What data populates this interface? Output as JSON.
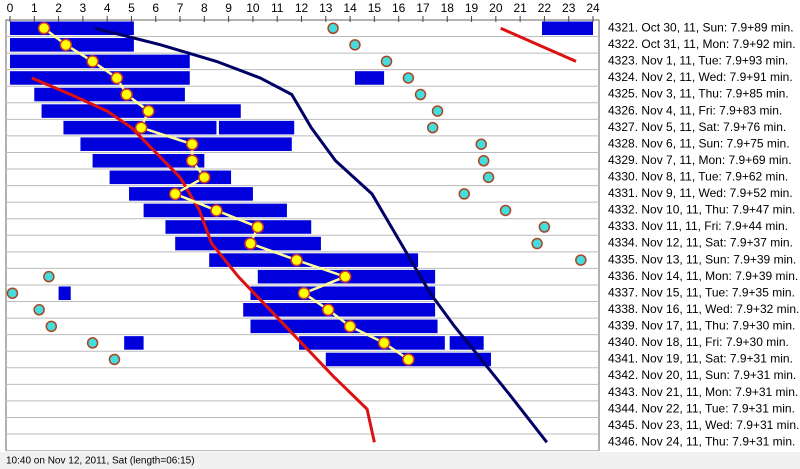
{
  "chart_data": {
    "type": "sleep",
    "xlim": [
      0,
      24
    ],
    "xticks": [
      0,
      1,
      2,
      3,
      4,
      5,
      6,
      7,
      8,
      9,
      10,
      11,
      12,
      13,
      14,
      15,
      16,
      17,
      18,
      19,
      20,
      21,
      22,
      23,
      24
    ],
    "bar_color": "#0000dd",
    "row_labels": [
      "4321. Oct 30, 11, Sun: 7.9+89 min.",
      "4322. Oct 31, 11, Mon: 7.9+92 min.",
      "4323. Nov 1, 11, Tue: 7.9+93 min.",
      "4324. Nov 2, 11, Wed: 7.9+91 min.",
      "4325. Nov 3, 11, Thu: 7.9+85 min.",
      "4326. Nov 4, 11, Fri: 7.9+83 min.",
      "4327. Nov 5, 11, Sat: 7.9+76 min.",
      "4328. Nov 6, 11, Sun: 7.9+75 min.",
      "4329. Nov 7, 11, Mon: 7.9+69 min.",
      "4330. Nov 8, 11, Tue: 7.9+62 min.",
      "4331. Nov 9, 11, Wed: 7.9+52 min.",
      "4332. Nov 10, 11, Thu: 7.9+47 min.",
      "4333. Nov 11, 11, Fri: 7.9+44 min.",
      "4334. Nov 12, 11, Sat: 7.9+37 min.",
      "4335. Nov 13, 11, Sun: 7.9+39 min.",
      "4336. Nov 14, 11, Mon: 7.9+39 min.",
      "4337. Nov 15, 11, Tue: 7.9+35 min.",
      "4338. Nov 16, 11, Wed: 7.9+32 min.",
      "4339. Nov 17, 11, Thu: 7.9+30 min.",
      "4340. Nov 18, 11, Fri: 7.9+30 min.",
      "4341. Nov 19, 11, Sat: 7.9+31 min.",
      "4342. Nov 20, 11, Sun: 7.9+31 min.",
      "4343. Nov 21, 11, Mon: 7.9+31 min.",
      "4344. Nov 22, 11, Tue: 7.9+31 min.",
      "4345. Nov 23, 11, Wed: 7.9+31 min.",
      "4346. Nov 24, 11, Thu: 7.9+31 min."
    ],
    "bars": [
      [
        [
          0,
          5.1
        ],
        [
          21.9,
          24
        ]
      ],
      [
        [
          0,
          5.1
        ]
      ],
      [
        [
          0,
          7.4
        ]
      ],
      [
        [
          0,
          7.4
        ],
        [
          14.2,
          15.4
        ]
      ],
      [
        [
          1,
          7.2
        ]
      ],
      [
        [
          1.3,
          9.5
        ]
      ],
      [
        [
          2.2,
          8.5
        ],
        [
          8.6,
          11.7
        ]
      ],
      [
        [
          2.9,
          11.6
        ]
      ],
      [
        [
          3.4,
          8
        ]
      ],
      [
        [
          4.1,
          9.1
        ]
      ],
      [
        [
          4.9,
          10
        ]
      ],
      [
        [
          5.5,
          11.4
        ]
      ],
      [
        [
          6.4,
          12.4
        ]
      ],
      [
        [
          6.8,
          12.8
        ]
      ],
      [
        [
          8.2,
          16.8
        ]
      ],
      [
        [
          10.2,
          17.5
        ]
      ],
      [
        [
          2,
          2.5
        ],
        [
          9.9,
          17.5
        ]
      ],
      [
        [
          9.6,
          17.5
        ]
      ],
      [
        [
          9.9,
          17.6
        ]
      ],
      [
        [
          4.7,
          5.5
        ],
        [
          11.9,
          17.9
        ],
        [
          18.1,
          19.5
        ]
      ],
      [
        [
          13,
          19.8
        ]
      ],
      [],
      [],
      [],
      [],
      []
    ],
    "onset": {
      "color": "#ffff00",
      "line_color": "#ffff99",
      "values": [
        1.4,
        2.3,
        3.4,
        4.4,
        4.8,
        5.7,
        5.4,
        7.5,
        7.5,
        8,
        6.8,
        8.5,
        10.2,
        9.9,
        11.8,
        13.8,
        12.1,
        13.1,
        14,
        15.4,
        16.4,
        null,
        null,
        null,
        null,
        null
      ]
    },
    "markers": {
      "color": "#44dddd",
      "values": [
        13.3,
        14.2,
        15.5,
        16.4,
        16.9,
        17.6,
        17.4,
        19.4,
        19.5,
        19.7,
        18.7,
        20.4,
        22,
        21.7,
        23.5,
        1.6,
        0.1,
        1.2,
        1.7,
        3.4,
        4.3,
        null,
        null,
        null,
        null,
        null
      ]
    },
    "lines": [
      {
        "color": "#dd1111",
        "x": [
          0.9,
          2.5,
          4,
          5,
          6,
          7,
          7.8,
          8.3,
          9.4,
          10.7,
          12,
          13.3,
          14.7,
          15
        ],
        "y": [
          3,
          4,
          5,
          6,
          7.5,
          9,
          11,
          13,
          15,
          17,
          19,
          21,
          23,
          25
        ]
      },
      {
        "color": "#dd1111",
        "x": [
          20.2,
          23.3
        ],
        "y": [
          0,
          2
        ]
      },
      {
        "color": "#000066",
        "x": [
          3.5,
          6.2,
          8.5,
          10.3,
          11.6,
          12.4,
          13.4,
          14.9,
          15.7,
          16.5,
          17.3,
          18.3,
          19.4,
          20.5,
          22.1
        ],
        "y": [
          0,
          1,
          2,
          3,
          4,
          6,
          8,
          10,
          12,
          14,
          16,
          18,
          20,
          22,
          25
        ]
      }
    ],
    "footer": "10:40 on Nov 12, 2011, Sat (length=06:15)"
  }
}
